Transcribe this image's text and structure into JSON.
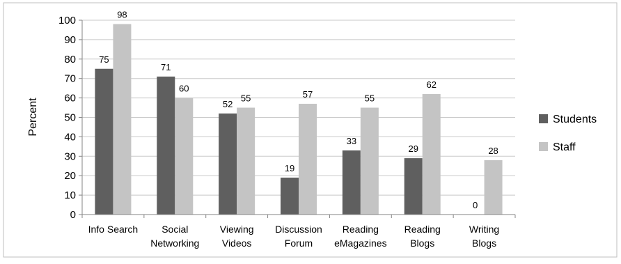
{
  "chart_data": {
    "type": "bar",
    "categories": [
      [
        "Info Search"
      ],
      [
        "Social",
        "Networking"
      ],
      [
        "Viewing",
        "Videos"
      ],
      [
        "Discussion",
        "Forum"
      ],
      [
        "Reading",
        "eMagazines"
      ],
      [
        "Reading",
        "Blogs"
      ],
      [
        "Writing",
        "Blogs"
      ]
    ],
    "series": [
      {
        "name": "Students",
        "values": [
          75,
          71,
          52,
          19,
          33,
          29,
          0
        ],
        "color": "#5f5f5f"
      },
      {
        "name": "Staff",
        "values": [
          98,
          60,
          55,
          57,
          55,
          62,
          28
        ],
        "color": "#c4c4c4"
      }
    ],
    "title": "",
    "xlabel": "",
    "ylabel": "Percent",
    "ylim": [
      0,
      100
    ],
    "yticks": [
      0,
      10,
      20,
      30,
      40,
      50,
      60,
      70,
      80,
      90,
      100
    ],
    "grid": true,
    "legend": "right",
    "data_labels": true,
    "colors": {
      "grid": "#c8c8c8",
      "axis": "#868686",
      "border": "#bfbfbf"
    }
  }
}
